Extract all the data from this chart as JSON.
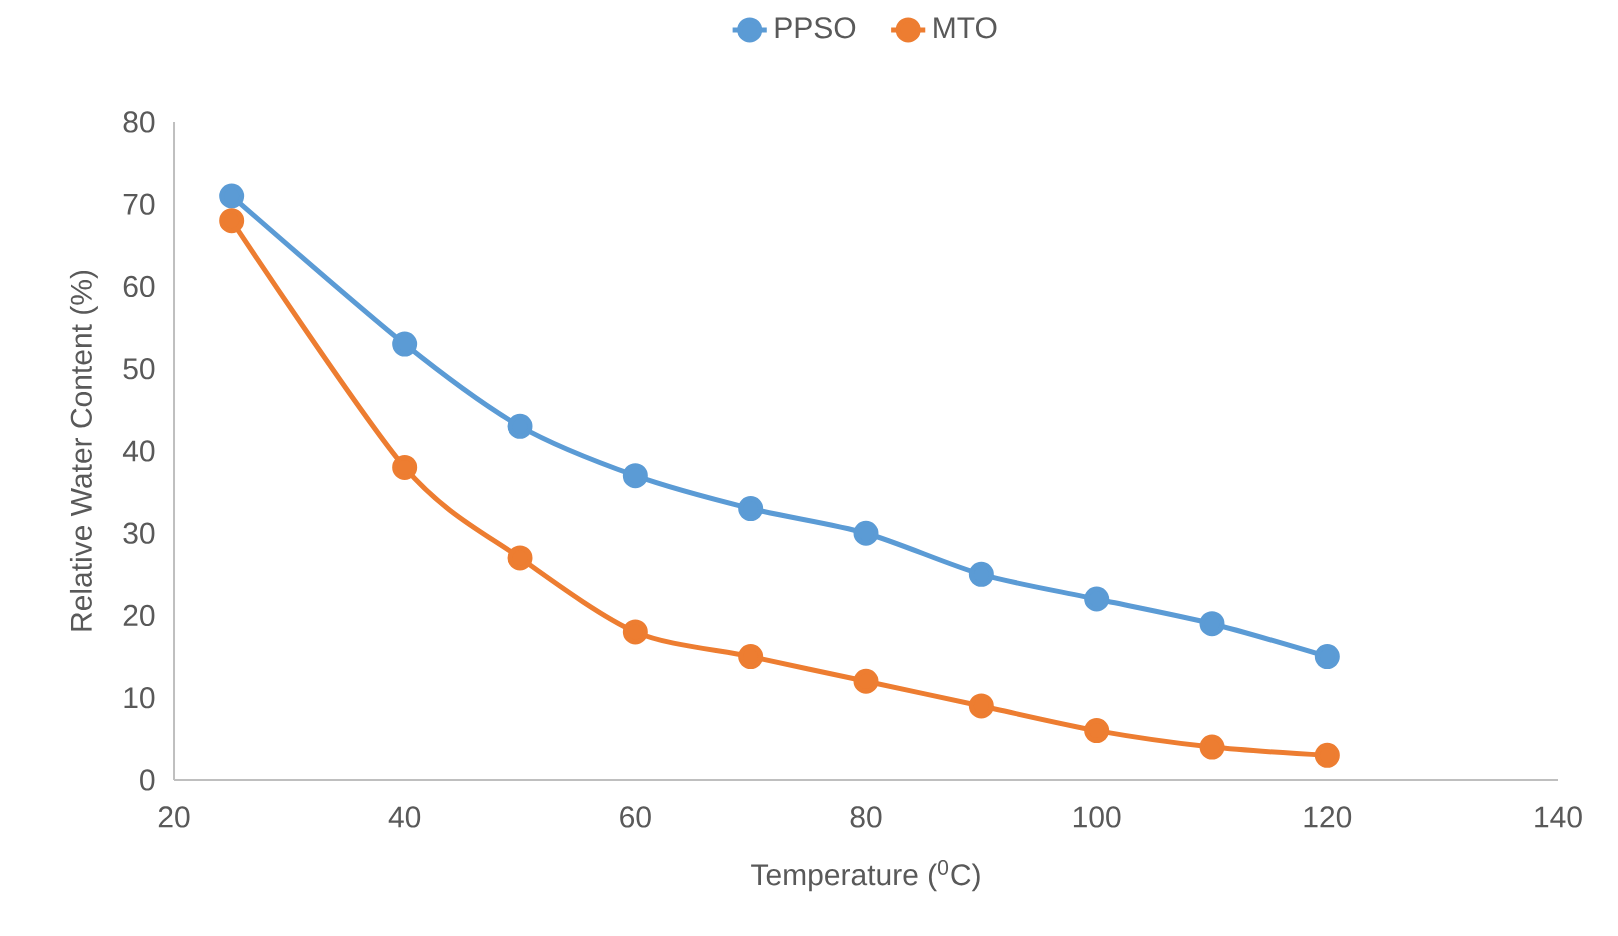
{
  "chart_data": {
    "type": "line",
    "xlabel": "Temperature ($^{0}$C)",
    "ylabel": "Relative Water Content (%)",
    "x": [
      25,
      40,
      50,
      60,
      70,
      80,
      90,
      100,
      110,
      120
    ],
    "series": [
      {
        "name": "PPSO",
        "color": "#5b9bd5",
        "values": [
          71,
          53,
          43,
          37,
          33,
          30,
          25,
          22,
          19,
          15
        ]
      },
      {
        "name": "MTO",
        "color": "#ed7d31",
        "values": [
          68,
          38,
          27,
          18,
          15,
          12,
          9,
          6,
          4,
          3
        ]
      }
    ],
    "xlim": [
      20,
      140
    ],
    "ylim": [
      0,
      80
    ],
    "xticks": [
      20,
      40,
      60,
      80,
      100,
      120,
      140
    ],
    "yticks": [
      0,
      10,
      20,
      30,
      40,
      50,
      60,
      70,
      80
    ],
    "legend": "top",
    "marker": "circle",
    "line_style": "solid"
  }
}
